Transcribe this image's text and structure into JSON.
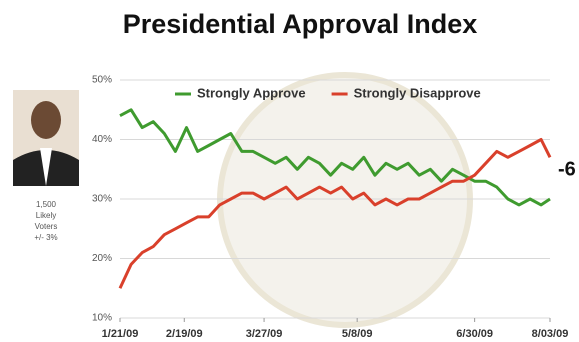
{
  "chart_data": {
    "type": "line",
    "title": "Presidential Approval Index",
    "annotations": [
      "1,500",
      "Likely",
      "Voters",
      "+/- 3%",
      "-6"
    ],
    "x": [
      "2009-01-21",
      "2009-01-26",
      "2009-01-31",
      "2009-02-05",
      "2009-02-10",
      "2009-02-15",
      "2009-02-20",
      "2009-02-25",
      "2009-03-02",
      "2009-03-07",
      "2009-03-12",
      "2009-03-17",
      "2009-03-22",
      "2009-03-27",
      "2009-04-01",
      "2009-04-06",
      "2009-04-11",
      "2009-04-16",
      "2009-04-21",
      "2009-04-26",
      "2009-05-01",
      "2009-05-06",
      "2009-05-11",
      "2009-05-16",
      "2009-05-21",
      "2009-05-26",
      "2009-05-31",
      "2009-06-05",
      "2009-06-10",
      "2009-06-15",
      "2009-06-20",
      "2009-06-25",
      "2009-06-30",
      "2009-07-05",
      "2009-07-10",
      "2009-07-15",
      "2009-07-20",
      "2009-07-25",
      "2009-07-30",
      "2009-08-03"
    ],
    "series": [
      {
        "name": "Strongly Approve",
        "color": "#3f9b2f",
        "values": [
          44,
          45,
          42,
          43,
          41,
          38,
          42,
          38,
          39,
          40,
          41,
          38,
          38,
          37,
          36,
          37,
          35,
          37,
          36,
          34,
          36,
          35,
          37,
          34,
          36,
          35,
          36,
          34,
          35,
          33,
          35,
          34,
          33,
          33,
          32,
          30,
          29,
          30,
          29,
          30
        ]
      },
      {
        "name": "Strongly Disapprove",
        "color": "#d9402b",
        "values": [
          15,
          19,
          21,
          22,
          24,
          25,
          26,
          27,
          27,
          29,
          30,
          31,
          31,
          30,
          31,
          32,
          30,
          31,
          32,
          31,
          32,
          30,
          31,
          29,
          30,
          29,
          30,
          30,
          31,
          32,
          33,
          33,
          34,
          36,
          38,
          37,
          38,
          39,
          40,
          37
        ]
      }
    ],
    "xlim": [
      "2009-01-21",
      "2009-08-03"
    ],
    "xticks": [
      {
        "value": "2009-01-21",
        "label": "1/21/09"
      },
      {
        "value": "2009-02-19",
        "label": "2/19/09"
      },
      {
        "value": "2009-03-27",
        "label": "3/27/09"
      },
      {
        "value": "2009-05-08",
        "label": "5/8/09"
      },
      {
        "value": "2009-06-30",
        "label": "6/30/09"
      },
      {
        "value": "2009-08-03",
        "label": "8/03/09"
      }
    ],
    "ylim": [
      10,
      50
    ],
    "yticks": [
      {
        "value": 10,
        "label": "10%"
      },
      {
        "value": 20,
        "label": "20%"
      },
      {
        "value": 30,
        "label": "30%"
      },
      {
        "value": 40,
        "label": "40%"
      },
      {
        "value": 50,
        "label": "50%"
      }
    ],
    "grid": true,
    "legend": "top"
  }
}
